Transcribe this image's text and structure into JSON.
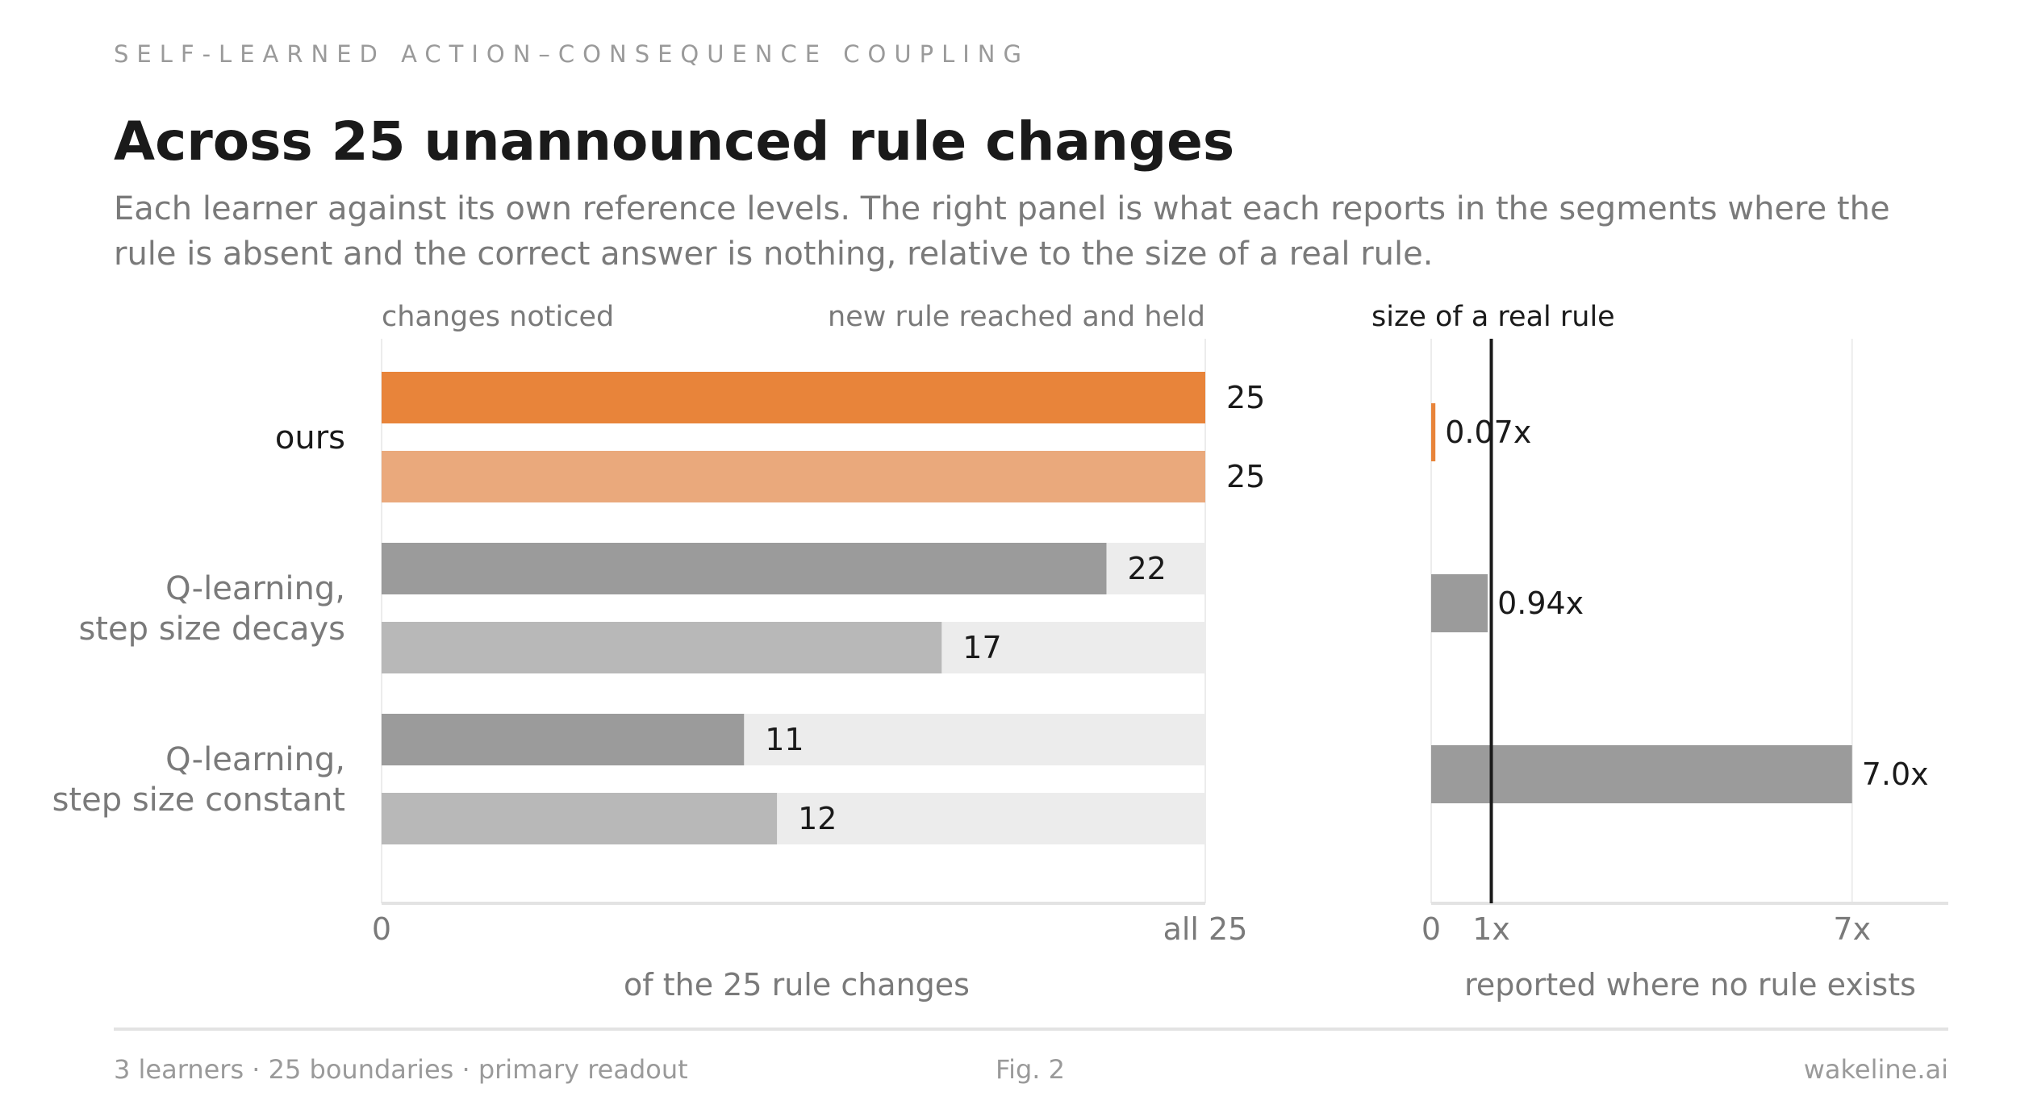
{
  "kicker": "SELF-LEARNED ACTION–CONSEQUENCE COUPLING",
  "title": "Across 25 unannounced rule changes",
  "subtitle_lines": [
    "Each learner against its own reference levels. The right panel is what each reports in the segments where the",
    "rule is absent and the correct answer is nothing, relative to the size of a real rule."
  ],
  "colors": {
    "ours_noticed": "#e8843a",
    "ours_held": "#eaa97c",
    "baseline_noticed": "#9b9b9b",
    "baseline_held": "#b8b8b8",
    "track": "#ececec",
    "reference_line": "#1a1a1a"
  },
  "chart_data": [
    {
      "type": "bar",
      "orientation": "horizontal",
      "column_headers": [
        "changes noticed",
        "new rule reached and held"
      ],
      "categories": [
        {
          "label_lines": [
            "ours"
          ],
          "highlight": true
        },
        {
          "label_lines": [
            "Q-learning,",
            "step size decays"
          ],
          "highlight": false
        },
        {
          "label_lines": [
            "Q-learning,",
            "step size constant"
          ],
          "highlight": false
        }
      ],
      "series": [
        {
          "name": "changes noticed",
          "values": [
            25,
            22,
            11
          ]
        },
        {
          "name": "new rule reached and held",
          "values": [
            25,
            17,
            12
          ]
        }
      ],
      "xlim": [
        0,
        25
      ],
      "ticks": [
        {
          "value": 0,
          "label": "0"
        },
        {
          "value": 25,
          "label": "all 25"
        }
      ],
      "xlabel": "of the 25 rule changes"
    },
    {
      "type": "bar",
      "orientation": "horizontal",
      "reference": {
        "value": 1,
        "label": "size of a real rule"
      },
      "values": [
        0.07,
        0.94,
        7.0
      ],
      "value_labels": [
        "0.07x",
        "0.94x",
        "7.0x"
      ],
      "xlim": [
        0,
        8.6
      ],
      "ticks": [
        {
          "value": 0,
          "label": "0"
        },
        {
          "value": 1,
          "label": "1x"
        },
        {
          "value": 7,
          "label": "7x"
        }
      ],
      "xlabel": "reported where no rule exists"
    }
  ],
  "footer": {
    "left": "3 learners · 25 boundaries · primary readout",
    "center": "Fig. 2",
    "right": "wakeline.ai"
  }
}
